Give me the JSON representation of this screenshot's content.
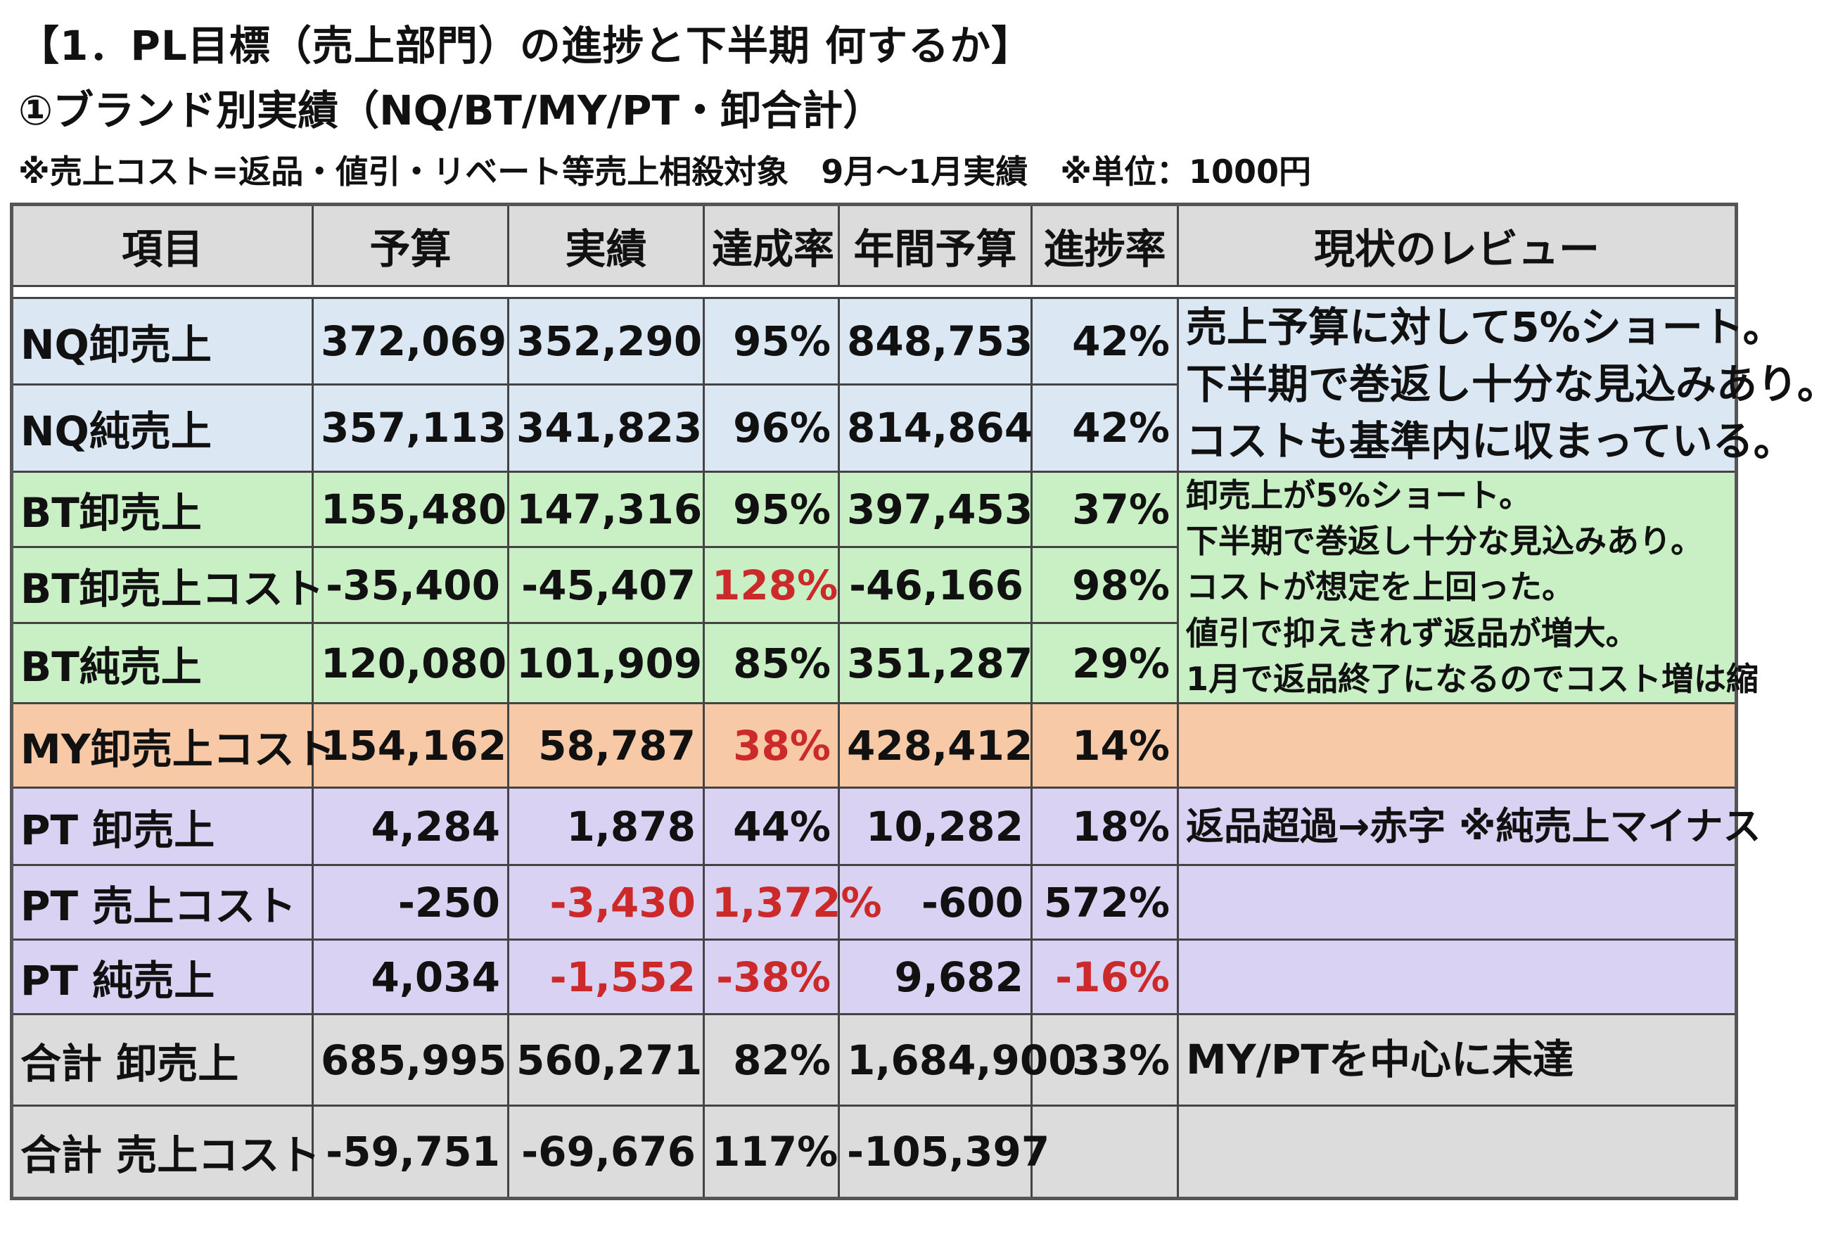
{
  "header": {
    "title": "【1．PL目標（売上部門）の進捗と下半期 何するか】",
    "subtitle": "①ブランド別実績（NQ/BT/MY/PT・卸合計）",
    "note": "※売上コスト=返品・値引・リベート等売上相殺対象　9月～1月実績　※単位：1000円"
  },
  "table": {
    "columns": [
      "項目",
      "予算",
      "実績",
      "達成率",
      "年間予算",
      "進捗率",
      "現状のレビュー"
    ],
    "rows": [
      {
        "item": "NQ卸売上",
        "budget": "372,069",
        "actual": "352,290",
        "achievement": "95%",
        "annual": "848,753",
        "progress": "42%"
      },
      {
        "item": "NQ純売上",
        "budget": "357,113",
        "actual": "341,823",
        "achievement": "96%",
        "annual": "814,864",
        "progress": "42%"
      },
      {
        "item": "BT卸売上",
        "budget": "155,480",
        "actual": "147,316",
        "achievement": "95%",
        "annual": "397,453",
        "progress": "37%"
      },
      {
        "item": "BT卸売上コスト",
        "budget": "-35,400",
        "actual": "-45,407",
        "achievement": "128%",
        "annual": "-46,166",
        "progress": "98%"
      },
      {
        "item": "BT純売上",
        "budget": "120,080",
        "actual": "101,909",
        "achievement": "85%",
        "annual": "351,287",
        "progress": "29%"
      },
      {
        "item": "MY卸売上コスト",
        "budget": "154,162",
        "actual": "58,787",
        "achievement": "38%",
        "annual": "428,412",
        "progress": "14%"
      },
      {
        "item": "PT 卸売上",
        "budget": "4,284",
        "actual": "1,878",
        "achievement": "44%",
        "annual": "10,282",
        "progress": "18%"
      },
      {
        "item": "PT 売上コスト",
        "budget": "-250",
        "actual": "-3,430",
        "achievement": "1,372%",
        "annual": "-600",
        "progress": "572%"
      },
      {
        "item": "PT 純売上",
        "budget": "4,034",
        "actual": "-1,552",
        "achievement": "-38%",
        "annual": "9,682",
        "progress": "-16%"
      },
      {
        "item": "合計 卸売上",
        "budget": "685,995",
        "actual": "560,271",
        "achievement": "82%",
        "annual": "1,684,900",
        "progress": "33%"
      },
      {
        "item": "合計 売上コスト",
        "budget": "-59,751",
        "actual": "-69,676",
        "achievement": "117%",
        "annual": "-105,397",
        "progress": ""
      }
    ],
    "reviews": {
      "nq": [
        "売上予算に対して5%ショート。",
        "下半期で巻返し十分な見込みあり。",
        "コストも基準内に収まっている。"
      ],
      "bt": [
        "卸売上が5%ショート。",
        "下半期で巻返し十分な見込みあり。",
        "コストが想定を上回った。",
        "値引で抑えきれず返品が増大。",
        "1月で返品終了になるのでコスト増は縮"
      ],
      "my": "",
      "pt": "返品超過→赤字 ※純売上マイナス",
      "total": "MY/PTを中心に未達"
    },
    "highlight_color": "#cc2a2a",
    "row_colors": {
      "nq": "#dbe8f4",
      "bt": "#c8f0c4",
      "my": "#f7c9a6",
      "pt": "#dad2f2",
      "total": "#dcdcdc",
      "header": "#dcdcdc"
    }
  }
}
